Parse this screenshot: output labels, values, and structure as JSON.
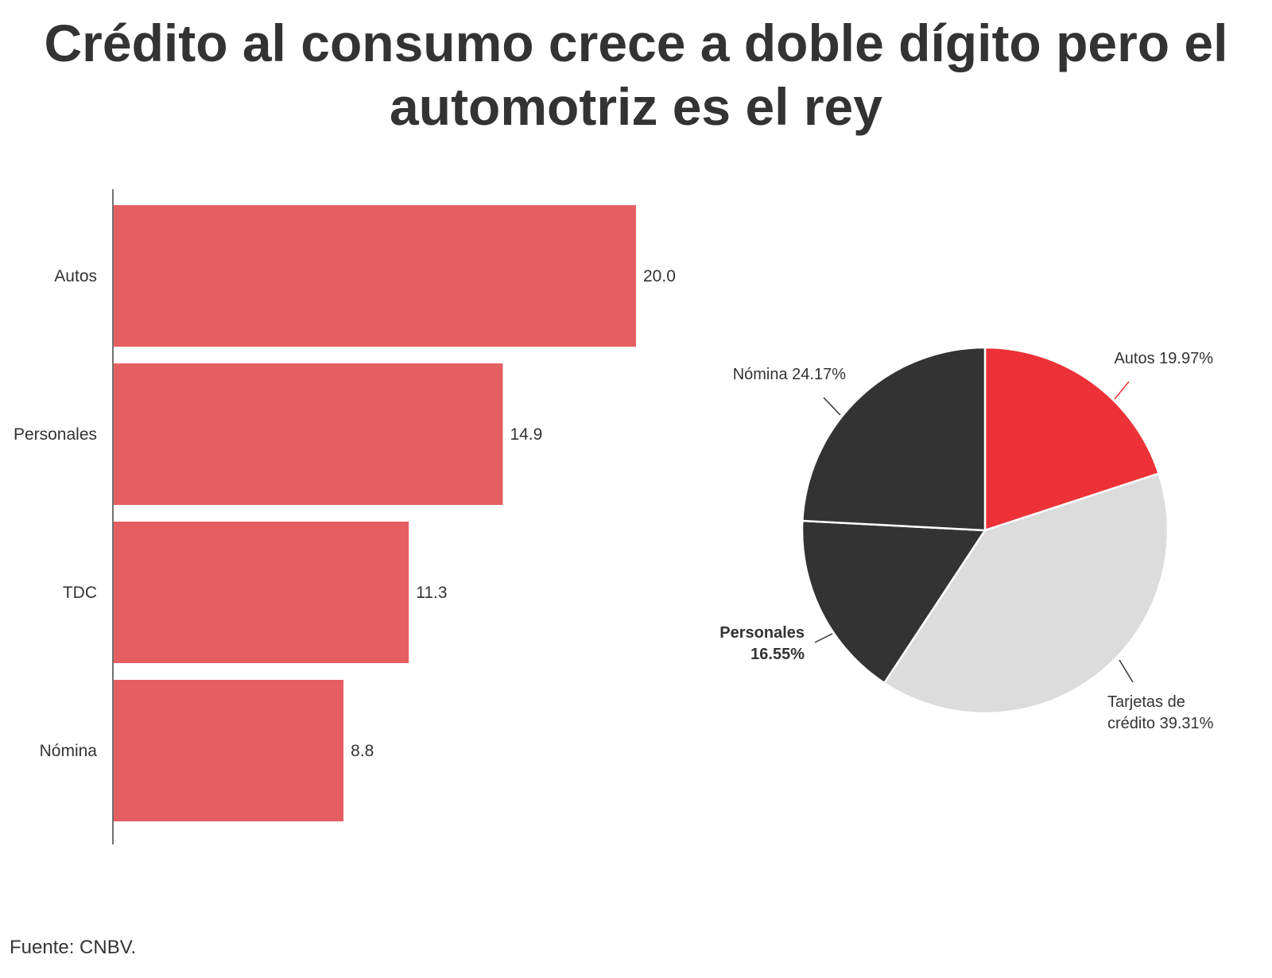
{
  "title_line1": "Crédito al consumo crece a doble dígito pero el",
  "title_line2": "automotriz es el rey",
  "source": "Fuente: CNBV.",
  "colors": {
    "bar": "#e55f62",
    "axis": "#444444",
    "text": "#333333",
    "pie_autos": "#ec3237",
    "pie_tdc": "#dcdcdd",
    "pie_dark": "#333333",
    "autos_label": "#ec3237"
  },
  "chart_data": [
    {
      "type": "bar",
      "orientation": "horizontal",
      "categories": [
        "Autos",
        "Personales",
        "TDC",
        "Nómina"
      ],
      "values": [
        20.0,
        14.9,
        11.3,
        8.8
      ],
      "value_labels": [
        "20.0",
        "14.9",
        "11.3",
        "8.8"
      ],
      "xlim": [
        0,
        20.8
      ],
      "grid": false
    },
    {
      "type": "pie",
      "slices": [
        {
          "name": "Autos",
          "value": 19.97,
          "label": [
            "Autos 19.97%"
          ],
          "color": "#ec3237"
        },
        {
          "name": "Tarjetas de crédito",
          "value": 39.31,
          "label": [
            "Tarjetas de",
            "crédito 39.31%"
          ],
          "color": "#dcdcdd"
        },
        {
          "name": "Personales",
          "value": 16.55,
          "label": [
            "Personales",
            "16.55%"
          ],
          "color": "#333333"
        },
        {
          "name": "Nómina",
          "value": 24.17,
          "label": [
            "Nómina 24.17%"
          ],
          "color": "#333333"
        }
      ]
    }
  ]
}
